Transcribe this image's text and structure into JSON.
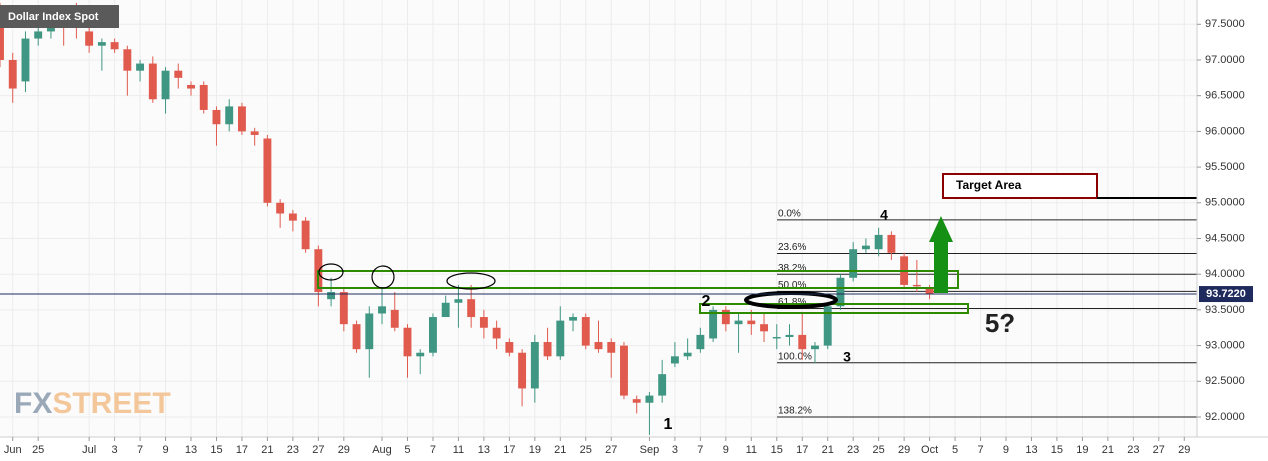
{
  "chart_data": {
    "type": "candlestick",
    "title": "Dollar Index Spot",
    "categories": [
      null,
      null,
      null,
      null,
      null,
      null,
      null,
      null,
      null,
      null,
      null,
      null,
      null,
      null,
      null,
      null,
      null,
      null,
      null,
      null,
      null,
      null,
      null,
      null,
      null,
      null,
      null,
      null,
      null,
      null,
      null,
      null,
      null,
      null,
      null,
      null,
      null,
      null,
      null,
      null,
      null,
      null,
      null,
      null,
      null,
      null,
      null,
      null,
      null,
      null,
      null,
      null,
      null,
      null,
      null,
      null,
      null,
      null,
      null,
      null,
      null,
      null,
      null,
      null,
      null,
      null,
      null,
      null,
      null,
      null,
      null,
      null,
      null,
      null
    ],
    "open": [
      97.7,
      97.0,
      96.7,
      97.3,
      97.4,
      97.55,
      97.6,
      97.4,
      97.2,
      97.25,
      97.15,
      96.85,
      96.95,
      96.45,
      96.85,
      96.65,
      96.65,
      96.3,
      96.1,
      96.35,
      96.0,
      95.9,
      95.0,
      94.85,
      94.75,
      94.35,
      93.65,
      93.75,
      93.3,
      92.95,
      93.45,
      93.5,
      93.25,
      92.85,
      92.9,
      93.4,
      93.6,
      93.65,
      93.4,
      93.25,
      93.05,
      92.9,
      92.4,
      93.05,
      92.85,
      93.35,
      93.4,
      93.05,
      93.05,
      93.0,
      92.25,
      92.2,
      92.3,
      92.75,
      92.85,
      92.95,
      93.1,
      93.5,
      93.3,
      93.35,
      93.3,
      93.1,
      93.12,
      93.15,
      92.95,
      93.0,
      93.55,
      93.95,
      94.35,
      94.35,
      94.55,
      94.25,
      93.85,
      93.8
    ],
    "high": [
      97.8,
      97.1,
      97.4,
      97.5,
      97.65,
      97.75,
      97.8,
      97.5,
      97.3,
      97.3,
      97.2,
      97.0,
      97.05,
      96.9,
      96.95,
      96.7,
      96.7,
      96.35,
      96.45,
      96.4,
      96.05,
      95.95,
      95.05,
      94.9,
      94.8,
      94.4,
      93.95,
      93.8,
      93.35,
      93.55,
      93.8,
      93.75,
      93.3,
      92.95,
      93.45,
      93.7,
      93.85,
      93.85,
      93.5,
      93.35,
      93.1,
      92.95,
      93.15,
      93.25,
      93.55,
      93.45,
      93.45,
      93.35,
      93.1,
      93.05,
      92.3,
      92.35,
      92.8,
      93.05,
      93.1,
      93.25,
      93.55,
      93.55,
      93.45,
      93.5,
      93.45,
      93.3,
      93.3,
      93.45,
      93.05,
      93.6,
      94.0,
      94.45,
      94.5,
      94.65,
      94.6,
      94.3,
      94.2,
      93.85
    ],
    "low": [
      96.9,
      96.4,
      96.55,
      97.2,
      97.3,
      97.2,
      97.3,
      97.1,
      96.85,
      97.1,
      96.5,
      96.7,
      96.4,
      96.25,
      96.6,
      96.5,
      96.25,
      95.8,
      96.0,
      95.95,
      95.8,
      94.95,
      94.65,
      94.6,
      94.3,
      93.55,
      93.55,
      93.2,
      92.9,
      92.55,
      93.3,
      93.2,
      92.55,
      92.6,
      92.85,
      93.4,
      93.25,
      93.25,
      93.1,
      92.95,
      92.85,
      92.15,
      92.2,
      92.8,
      92.8,
      93.2,
      92.95,
      92.9,
      92.55,
      92.25,
      92.05,
      91.75,
      92.2,
      92.7,
      92.8,
      92.9,
      93.05,
      93.2,
      92.9,
      93.15,
      93.05,
      92.95,
      93.0,
      92.8,
      92.75,
      92.95,
      93.5,
      93.9,
      94.3,
      94.25,
      94.2,
      93.8,
      93.75,
      93.65
    ],
    "close": [
      97.0,
      96.6,
      97.3,
      97.4,
      97.55,
      97.5,
      97.45,
      97.2,
      97.25,
      97.15,
      96.85,
      96.95,
      96.45,
      96.85,
      96.75,
      96.6,
      96.3,
      96.1,
      96.35,
      96.0,
      95.95,
      95.0,
      94.85,
      94.75,
      94.35,
      93.75,
      93.75,
      93.3,
      92.95,
      93.45,
      93.55,
      93.25,
      92.85,
      92.9,
      93.4,
      93.6,
      93.65,
      93.4,
      93.25,
      93.1,
      92.9,
      92.4,
      93.05,
      92.85,
      93.35,
      93.4,
      93.0,
      92.95,
      92.9,
      92.3,
      92.2,
      92.3,
      92.6,
      92.85,
      92.9,
      93.15,
      93.5,
      93.3,
      93.35,
      93.3,
      93.2,
      93.12,
      93.15,
      92.95,
      93.0,
      93.55,
      93.95,
      94.35,
      94.4,
      94.55,
      94.3,
      93.85,
      93.83,
      93.72
    ],
    "up_color": "#3f9682",
    "down_color": "#e05a4e",
    "xlim": [
      0,
      94
    ],
    "ylim": [
      91.72,
      97.84
    ],
    "yticks": [
      {
        "value": 92.0,
        "label": "92.0000"
      },
      {
        "value": 92.5,
        "label": "92.5000"
      },
      {
        "value": 93.0,
        "label": "93.0000"
      },
      {
        "value": 93.5,
        "label": "93.5000"
      },
      {
        "value": 94.0,
        "label": "94.0000"
      },
      {
        "value": 94.5,
        "label": "94.5000"
      },
      {
        "value": 95.0,
        "label": "95.0000"
      },
      {
        "value": 95.5,
        "label": "95.5000"
      },
      {
        "value": 96.0,
        "label": "96.0000"
      },
      {
        "value": 96.5,
        "label": "96.5000"
      },
      {
        "value": 97.0,
        "label": "97.0000"
      },
      {
        "value": 97.5,
        "label": "97.5000"
      }
    ],
    "xticks": [
      {
        "value": 1,
        "label": "Jun"
      },
      {
        "value": 3,
        "label": "25"
      },
      {
        "value": 7,
        "label": "Jul"
      },
      {
        "value": 9,
        "label": "3"
      },
      {
        "value": 11,
        "label": "7"
      },
      {
        "value": 13,
        "label": "9"
      },
      {
        "value": 15,
        "label": "13"
      },
      {
        "value": 17,
        "label": "15"
      },
      {
        "value": 19,
        "label": "17"
      },
      {
        "value": 21,
        "label": "21"
      },
      {
        "value": 23,
        "label": "23"
      },
      {
        "value": 25,
        "label": "27"
      },
      {
        "value": 27,
        "label": "29"
      },
      {
        "value": 30,
        "label": "Aug"
      },
      {
        "value": 32,
        "label": "5"
      },
      {
        "value": 34,
        "label": "7"
      },
      {
        "value": 36,
        "label": "11"
      },
      {
        "value": 38,
        "label": "13"
      },
      {
        "value": 40,
        "label": "17"
      },
      {
        "value": 42,
        "label": "19"
      },
      {
        "value": 44,
        "label": "21"
      },
      {
        "value": 46,
        "label": "25"
      },
      {
        "value": 48,
        "label": "27"
      },
      {
        "value": 51,
        "label": "Sep"
      },
      {
        "value": 53,
        "label": "3"
      },
      {
        "value": 55,
        "label": "7"
      },
      {
        "value": 57,
        "label": "9"
      },
      {
        "value": 59,
        "label": "11"
      },
      {
        "value": 61,
        "label": "15"
      },
      {
        "value": 63,
        "label": "17"
      },
      {
        "value": 65,
        "label": "21"
      },
      {
        "value": 67,
        "label": "23"
      },
      {
        "value": 69,
        "label": "25"
      },
      {
        "value": 71,
        "label": "29"
      },
      {
        "value": 73,
        "label": "Oct"
      },
      {
        "value": 75,
        "label": "5"
      },
      {
        "value": 77,
        "label": "7"
      },
      {
        "value": 79,
        "label": "9"
      },
      {
        "value": 81,
        "label": "13"
      },
      {
        "value": 83,
        "label": "15"
      },
      {
        "value": 85,
        "label": "19"
      },
      {
        "value": 87,
        "label": "21"
      },
      {
        "value": 89,
        "label": "23"
      },
      {
        "value": 91,
        "label": "27"
      },
      {
        "value": 93,
        "label": "29"
      }
    ],
    "grid": true,
    "current_price": {
      "value": 93.722,
      "label": "93.7220"
    },
    "fib_levels": [
      {
        "label": "0.0%",
        "value": 94.76
      },
      {
        "label": "23.6%",
        "value": 94.29
      },
      {
        "label": "38.2%",
        "value": 94.0
      },
      {
        "label": "50.0%",
        "value": 93.76
      },
      {
        "label": "61.8%",
        "value": 93.52
      },
      {
        "label": "100.0%",
        "value": 92.76
      },
      {
        "label": "138.2%",
        "value": 92.0
      }
    ],
    "annotations": {
      "target": "Target Area",
      "wave_1": "1",
      "wave_2": "2",
      "wave_3": "3",
      "wave_4": "4",
      "wave_5": "5?"
    },
    "watermark": {
      "prefix": "FX",
      "suffix": "STREET"
    }
  }
}
